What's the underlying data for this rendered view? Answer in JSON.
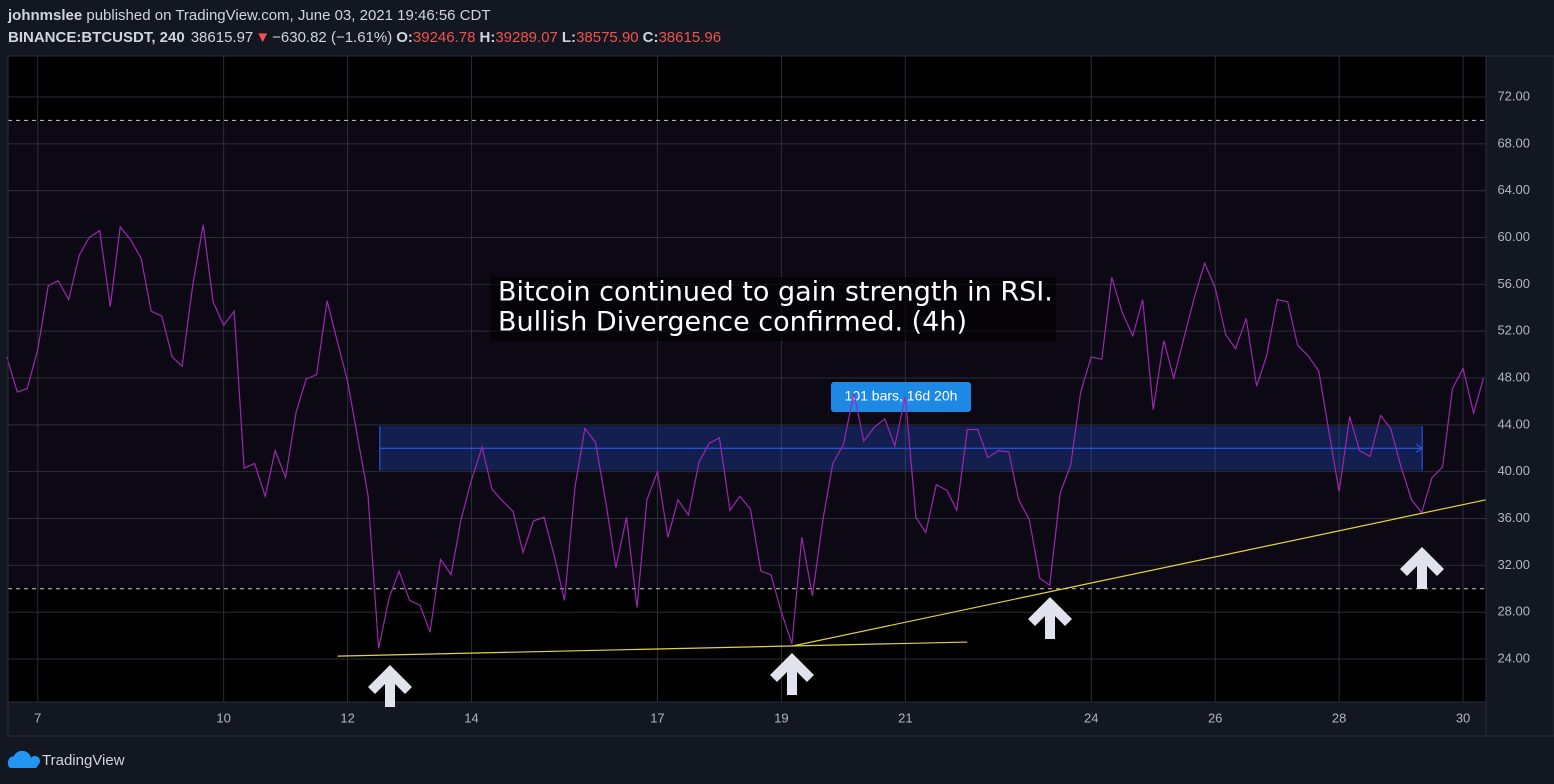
{
  "header": {
    "author": "johnmslee",
    "published": "published on TradingView.com, June 03, 2021 19:46:56 CDT",
    "symbol": "BINANCE:BTCUSDT, 240",
    "last": "38615.97",
    "change": "−630.82 (−1.61%)",
    "ohlc": [
      {
        "label": "O:",
        "value": "39246.78"
      },
      {
        "label": "H:",
        "value": "39289.07"
      },
      {
        "label": "L:",
        "value": "38575.90"
      },
      {
        "label": "C:",
        "value": "38615.96"
      }
    ]
  },
  "footer": {
    "brand": "TradingView"
  },
  "chart_data": {
    "type": "line",
    "annotations": [
      "Bitcoin continued to gain strength in RSI.",
      "Bullish Divergence confirmed. (4h)"
    ],
    "x": [
      6.5,
      6.67,
      6.83,
      7,
      7.17,
      7.33,
      7.5,
      7.67,
      7.83,
      8,
      8.17,
      8.33,
      8.5,
      8.67,
      8.83,
      9,
      9.17,
      9.33,
      9.5,
      9.67,
      9.83,
      10,
      10.17,
      10.33,
      10.5,
      10.67,
      10.83,
      11,
      11.17,
      11.33,
      11.5,
      11.67,
      11.83,
      12,
      12.17,
      12.33,
      12.5,
      12.67,
      12.83,
      13,
      13.17,
      13.33,
      13.5,
      13.67,
      13.83,
      14,
      14.17,
      14.33,
      14.5,
      14.67,
      14.83,
      15,
      15.17,
      15.33,
      15.5,
      15.67,
      15.83,
      16,
      16.17,
      16.33,
      16.5,
      16.67,
      16.83,
      17,
      17.17,
      17.33,
      17.5,
      17.67,
      17.83,
      18,
      18.17,
      18.33,
      18.5,
      18.67,
      18.83,
      19,
      19.17,
      19.33,
      19.5,
      19.67,
      19.83,
      20,
      20.17,
      20.33,
      20.5,
      20.67,
      20.83,
      21,
      21.17,
      21.33,
      21.5,
      21.67,
      21.83,
      22,
      22.17,
      22.33,
      22.5,
      22.67,
      22.83,
      23,
      23.17,
      23.33,
      23.5,
      23.67,
      23.83,
      24,
      24.17,
      24.33,
      24.5,
      24.67,
      24.83,
      25,
      25.17,
      25.33,
      25.5,
      25.67,
      25.83,
      26,
      26.17,
      26.33,
      26.5,
      26.67,
      26.83,
      27,
      27.17,
      27.33,
      27.5,
      27.67,
      27.83,
      28,
      28.17,
      28.33,
      28.5,
      28.67,
      28.83,
      29,
      29.17,
      29.33,
      29.5,
      29.67,
      29.83,
      30,
      30.17,
      30.33
    ],
    "series": [
      {
        "color": "#9c27b0",
        "values": [
          49.8,
          46.8,
          47.1,
          50.4,
          55.9,
          56.3,
          54.7,
          58.5,
          60.0,
          60.6,
          54.1,
          60.9,
          59.8,
          58.2,
          53.7,
          53.3,
          49.8,
          49.0,
          55.9,
          61.1,
          54.5,
          52.5,
          53.7,
          40.3,
          40.7,
          37.9,
          41.8,
          39.5,
          45.1,
          47.9,
          48.3,
          54.6,
          51.2,
          47.7,
          42.7,
          38.0,
          24.9,
          29.2,
          31.5,
          29.0,
          28.6,
          26.3,
          32.5,
          31.2,
          35.9,
          39.3,
          42.1,
          38.5,
          37.5,
          36.6,
          33.1,
          35.8,
          36.1,
          32.9,
          29.0,
          38.7,
          43.7,
          42.5,
          37.3,
          31.8,
          36.1,
          28.4,
          37.6,
          40.0,
          34.4,
          37.6,
          36.3,
          40.8,
          42.4,
          42.9,
          36.7,
          37.9,
          36.8,
          31.5,
          31.2,
          28.0,
          25.3,
          34.4,
          29.4,
          35.9,
          40.7,
          42.3,
          46.7,
          42.6,
          43.8,
          44.5,
          42.2,
          46.4,
          36.1,
          34.8,
          38.9,
          38.4,
          36.7,
          43.6,
          43.6,
          41.2,
          41.8,
          41.7,
          37.6,
          35.9,
          30.9,
          30.3,
          38.2,
          40.6,
          46.8,
          49.8,
          49.6,
          56.6,
          53.6,
          51.6,
          54.7,
          45.3,
          51.2,
          48.0,
          51.5,
          55.0,
          57.8,
          55.7,
          51.7,
          50.5,
          53.1,
          47.3,
          49.9,
          54.7,
          54.5,
          50.8,
          49.9,
          48.6,
          43.6,
          38.3,
          44.7,
          41.8,
          41.3,
          44.8,
          43.7,
          40.4,
          37.6,
          36.5,
          39.5,
          40.4,
          47.1,
          48.8,
          45.0,
          48.0
        ]
      }
    ],
    "xlim": [
      6.52,
      30.37
    ],
    "ylim": [
      20.33,
      75.5
    ],
    "xticks": [
      7,
      10,
      12,
      14,
      17,
      19,
      21,
      24,
      26,
      28,
      30
    ],
    "yticks": [
      {
        "value": 24,
        "label": "24.00"
      },
      {
        "value": 28,
        "label": "28.00"
      },
      {
        "value": 32,
        "label": "32.00"
      },
      {
        "value": 36,
        "label": "36.00"
      },
      {
        "value": 40,
        "label": "40.00"
      },
      {
        "value": 44,
        "label": "44.00"
      },
      {
        "value": 48,
        "label": "48.00"
      },
      {
        "value": 52,
        "label": "52.00"
      },
      {
        "value": 56,
        "label": "56.00"
      },
      {
        "value": 60,
        "label": "60.00"
      },
      {
        "value": 64,
        "label": "64.00"
      },
      {
        "value": 68,
        "label": "68.00"
      },
      {
        "value": 72,
        "label": "72.00"
      }
    ],
    "grid": true,
    "bands": {
      "upper": 70,
      "lower": 30,
      "color": "#7e57c2"
    },
    "range": {
      "label": "101 bars, 16d 20h",
      "x": [
        12.52,
        29.34
      ],
      "y": [
        40.1,
        43.9
      ],
      "color": "#2962ff"
    },
    "trendlines": [
      {
        "x": [
          11.84,
          22.0
        ],
        "y": [
          24.25,
          25.45
        ],
        "color": "#e6d33c"
      },
      {
        "x": [
          19.17,
          30.37
        ],
        "y": [
          25.1,
          37.6
        ],
        "color": "#e6d33c"
      }
    ]
  }
}
